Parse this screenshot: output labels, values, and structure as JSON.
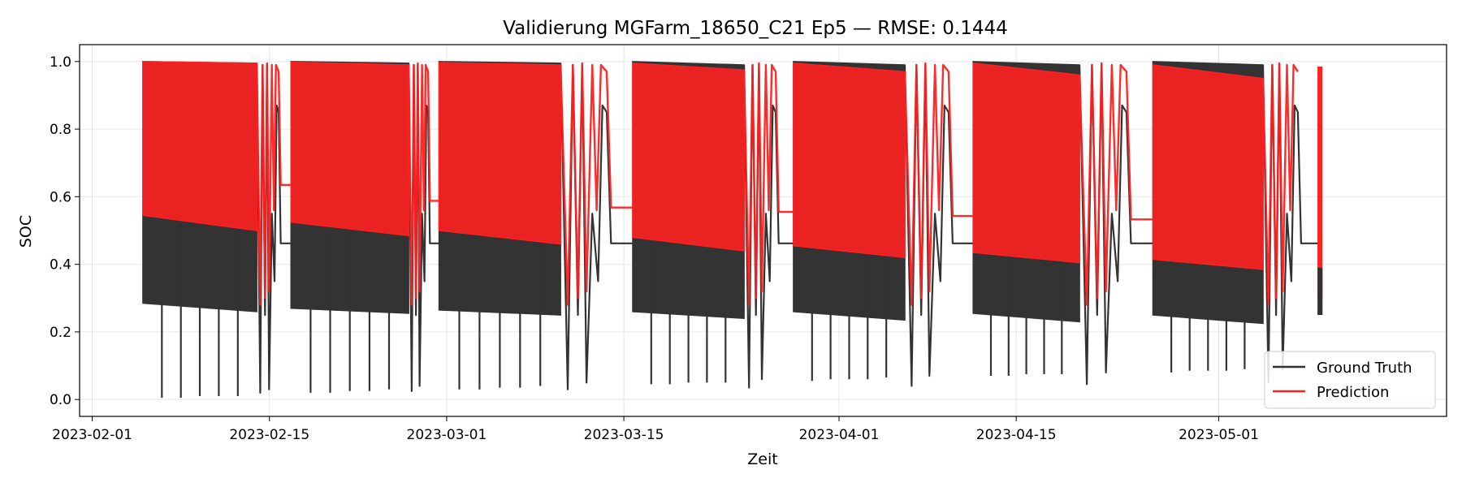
{
  "chart_data": {
    "type": "line",
    "title": "Validierung MGFarm_18650_C21 Ep5 — RMSE: 0.1444",
    "xlabel": "Zeit",
    "ylabel": "SOC",
    "xlim": [
      "2023-01-31",
      "2023-05-19"
    ],
    "ylim": [
      -0.05,
      1.05
    ],
    "grid": true,
    "legend_position": "bottom-right",
    "x_ticks": [
      "2023-02-01",
      "2023-02-15",
      "2023-03-01",
      "2023-03-15",
      "2023-04-01",
      "2023-04-15",
      "2023-05-01"
    ],
    "y_ticks": [
      0.0,
      0.2,
      0.4,
      0.6,
      0.8,
      1.0
    ],
    "y_tick_labels": [
      "0.0",
      "0.2",
      "0.4",
      "0.6",
      "0.8",
      "1.0"
    ],
    "series": [
      {
        "name": "Ground Truth",
        "color": "#333333",
        "segments": [
          {
            "start": "2023-02-05",
            "end": "2023-02-14",
            "top": [
              1.0,
              0.995
            ],
            "bottom": [
              0.285,
              0.26
            ],
            "dips": [
              0.005,
              0.005,
              0.01,
              0.01,
              0.01
            ]
          },
          {
            "start": "2023-02-16.7",
            "end": "2023-02-26",
            "top": [
              1.0,
              0.995
            ],
            "bottom": [
              0.27,
              0.255
            ],
            "dips": [
              0.02,
              0.02,
              0.025,
              0.025,
              0.03
            ]
          },
          {
            "start": "2023-02-28.4",
            "end": "2023-03-10",
            "top": [
              1.0,
              0.995
            ],
            "bottom": [
              0.265,
              0.25
            ],
            "dips": [
              0.03,
              0.03,
              0.035,
              0.035,
              0.04
            ]
          },
          {
            "start": "2023-03-15.7",
            "end": "2023-03-24.5",
            "top": [
              1.0,
              0.99
            ],
            "bottom": [
              0.26,
              0.24
            ],
            "dips": [
              0.045,
              0.045,
              0.05,
              0.05,
              0.05
            ]
          },
          {
            "start": "2023-03-28.4",
            "end": "2023-04-06.2",
            "top": [
              1.0,
              0.99
            ],
            "bottom": [
              0.26,
              0.235
            ],
            "dips": [
              0.055,
              0.06,
              0.06,
              0.06,
              0.065
            ]
          },
          {
            "start": "2023-04-11.6",
            "end": "2023-04-20",
            "top": [
              1.0,
              0.99
            ],
            "bottom": [
              0.255,
              0.23
            ],
            "dips": [
              0.07,
              0.07,
              0.075,
              0.075,
              0.075
            ]
          },
          {
            "start": "2023-04-25.8",
            "end": "2023-05-04.5",
            "top": [
              1.0,
              0.99
            ],
            "bottom": [
              0.25,
              0.225
            ],
            "dips": [
              0.08,
              0.085,
              0.085,
              0.085,
              0.09
            ]
          }
        ],
        "plateau_value": 0.462
      },
      {
        "name": "Prediction",
        "color": "#ff2020",
        "segments": [
          {
            "start": "2023-02-05",
            "end": "2023-02-14",
            "top": [
              1.0,
              0.995
            ],
            "bottom": [
              0.545,
              0.5
            ]
          },
          {
            "start": "2023-02-16.7",
            "end": "2023-02-26",
            "top": [
              0.998,
              0.99
            ],
            "bottom": [
              0.525,
              0.485
            ]
          },
          {
            "start": "2023-02-28.4",
            "end": "2023-03-10",
            "top": [
              0.997,
              0.99
            ],
            "bottom": [
              0.5,
              0.46
            ]
          },
          {
            "start": "2023-03-15.7",
            "end": "2023-03-24.5",
            "top": [
              0.995,
              0.975
            ],
            "bottom": [
              0.48,
              0.44
            ]
          },
          {
            "start": "2023-03-28.4",
            "end": "2023-04-06.2",
            "top": [
              0.995,
              0.97
            ],
            "bottom": [
              0.455,
              0.42
            ]
          },
          {
            "start": "2023-04-11.6",
            "end": "2023-04-20",
            "top": [
              0.995,
              0.96
            ],
            "bottom": [
              0.435,
              0.405
            ]
          },
          {
            "start": "2023-04-25.8",
            "end": "2023-05-04.5",
            "top": [
              0.99,
              0.95
            ],
            "bottom": [
              0.415,
              0.385
            ]
          }
        ],
        "plateau_values": [
          0.635,
          0.588,
          0.568,
          0.555,
          0.543,
          0.533
        ]
      }
    ],
    "final_block": {
      "start": "2023-05-08.8",
      "end": "2023-05-09.2",
      "gt": [
        0.25,
        0.39
      ],
      "pred": [
        0.3,
        0.985
      ]
    }
  }
}
